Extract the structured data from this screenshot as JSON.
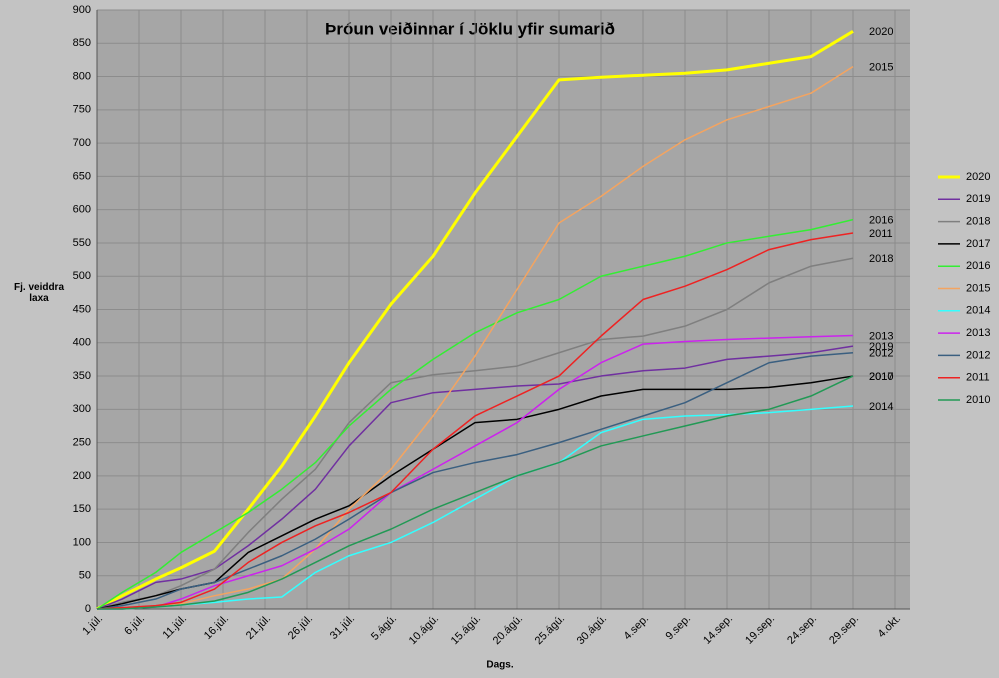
{
  "chart_data": {
    "type": "line",
    "title": "Þróun veiðinnar í Jöklu yfir sumarið",
    "y_label": "Fj. veiddra laxa",
    "x_label": "Dags.",
    "xlim": [
      0,
      95
    ],
    "ylim": [
      0,
      900
    ],
    "yticks": [
      0,
      50,
      100,
      150,
      200,
      250,
      300,
      350,
      400,
      450,
      500,
      550,
      600,
      650,
      700,
      750,
      800,
      850,
      900
    ],
    "xticks": [
      {
        "value": 0,
        "label": "1.júl."
      },
      {
        "value": 5,
        "label": "6.júl."
      },
      {
        "value": 10,
        "label": "11.júl."
      },
      {
        "value": 15,
        "label": "16.júl."
      },
      {
        "value": 20,
        "label": "21.júl."
      },
      {
        "value": 25,
        "label": "26.júl."
      },
      {
        "value": 30,
        "label": "31.júl."
      },
      {
        "value": 35,
        "label": "5.ágú."
      },
      {
        "value": 40,
        "label": "10.ágú."
      },
      {
        "value": 45,
        "label": "15.ágú."
      },
      {
        "value": 50,
        "label": "20.ágú."
      },
      {
        "value": 55,
        "label": "25.ágú."
      },
      {
        "value": 60,
        "label": "30.ágú."
      },
      {
        "value": 65,
        "label": "4.sep."
      },
      {
        "value": 70,
        "label": "9.sep."
      },
      {
        "value": 75,
        "label": "14.sep."
      },
      {
        "value": 80,
        "label": "19.sep."
      },
      {
        "value": 85,
        "label": "24.sep."
      },
      {
        "value": 90,
        "label": "29.sep."
      },
      {
        "value": 95,
        "label": "4.okt."
      }
    ],
    "grid": true,
    "legend": "right",
    "x": [
      0,
      3,
      7,
      10,
      14,
      18,
      22,
      26,
      30,
      35,
      40,
      45,
      50,
      55,
      60,
      65,
      70,
      75,
      80,
      85,
      90
    ],
    "series": [
      {
        "name": "2020",
        "color": "#ffff00",
        "width": 3,
        "values": [
          0,
          20,
          45,
          62,
          87,
          150,
          215,
          290,
          370,
          458,
          530,
          625,
          710,
          795,
          799,
          802,
          805,
          810,
          820,
          830,
          868
        ]
      },
      {
        "name": "2019",
        "color": "#7030a0",
        "width": 1.5,
        "values": [
          0,
          15,
          40,
          45,
          60,
          95,
          135,
          180,
          245,
          310,
          325,
          330,
          335,
          338,
          350,
          358,
          362,
          375,
          380,
          385,
          395
        ]
      },
      {
        "name": "2018",
        "color": "#7f7f7f",
        "width": 1.5,
        "values": [
          0,
          10,
          20,
          35,
          60,
          115,
          165,
          210,
          280,
          340,
          352,
          358,
          365,
          385,
          405,
          410,
          425,
          450,
          490,
          515,
          527
        ]
      },
      {
        "name": "2017",
        "color": "#000000",
        "width": 1.5,
        "values": [
          0,
          8,
          20,
          30,
          40,
          85,
          110,
          135,
          155,
          200,
          240,
          280,
          285,
          300,
          320,
          330,
          330,
          330,
          333,
          340,
          350
        ]
      },
      {
        "name": "2016",
        "color": "#33ee33",
        "width": 1.5,
        "values": [
          0,
          25,
          55,
          85,
          115,
          145,
          180,
          220,
          275,
          330,
          375,
          415,
          445,
          465,
          500,
          515,
          530,
          550,
          560,
          570,
          585
        ]
      },
      {
        "name": "2015",
        "color": "#f4a460",
        "width": 1.5,
        "values": [
          0,
          0,
          3,
          8,
          20,
          30,
          45,
          90,
          150,
          210,
          290,
          380,
          480,
          580,
          620,
          665,
          705,
          735,
          755,
          775,
          815
        ]
      },
      {
        "name": "2014",
        "color": "#33ffff",
        "width": 1.5,
        "values": [
          0,
          0,
          3,
          6,
          10,
          15,
          18,
          55,
          80,
          100,
          130,
          165,
          200,
          220,
          265,
          285,
          290,
          292,
          295,
          300,
          305
        ]
      },
      {
        "name": "2013",
        "color": "#cc22ee",
        "width": 1.5,
        "values": [
          0,
          0,
          3,
          15,
          35,
          50,
          65,
          90,
          120,
          175,
          210,
          245,
          280,
          330,
          370,
          398,
          402,
          405,
          407,
          409,
          411
        ]
      },
      {
        "name": "2012",
        "color": "#3a5f80",
        "width": 1.5,
        "values": [
          0,
          5,
          15,
          30,
          40,
          60,
          80,
          105,
          135,
          175,
          205,
          220,
          232,
          250,
          270,
          290,
          310,
          340,
          370,
          380,
          385
        ]
      },
      {
        "name": "2011",
        "color": "#ee2222",
        "width": 1.5,
        "values": [
          0,
          2,
          5,
          10,
          30,
          70,
          100,
          125,
          145,
          175,
          240,
          290,
          320,
          350,
          410,
          465,
          485,
          510,
          540,
          555,
          565
        ]
      },
      {
        "name": "2010",
        "color": "#229955",
        "width": 1.5,
        "values": [
          0,
          0,
          3,
          6,
          12,
          25,
          45,
          70,
          95,
          120,
          150,
          175,
          200,
          220,
          245,
          260,
          275,
          290,
          300,
          320,
          350
        ]
      }
    ]
  }
}
